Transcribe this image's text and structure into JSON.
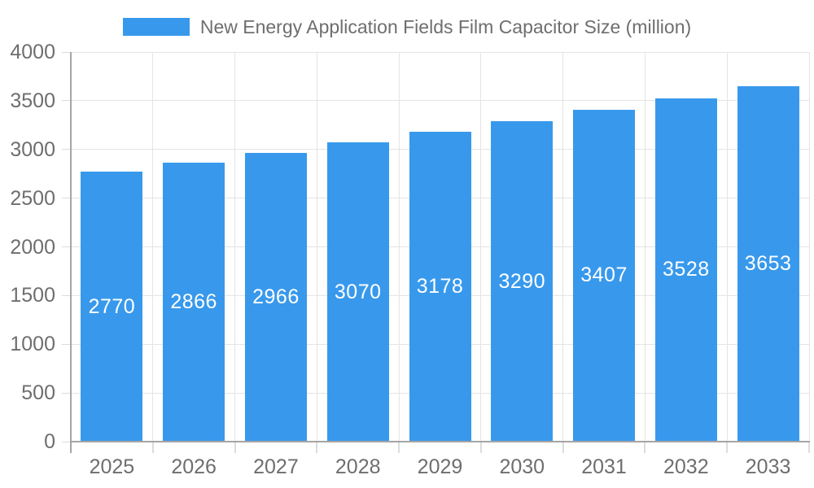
{
  "chart_data": {
    "type": "bar",
    "title": "",
    "legend": {
      "label": "New Energy Application Fields Film Capacitor Size (million)",
      "position": "top"
    },
    "categories": [
      "2025",
      "2026",
      "2027",
      "2028",
      "2029",
      "2030",
      "2031",
      "2032",
      "2033"
    ],
    "series": [
      {
        "name": "New Energy Application Fields Film Capacitor Size (million)",
        "values": [
          2770,
          2866,
          2966,
          3070,
          3178,
          3290,
          3407,
          3528,
          3653
        ]
      }
    ],
    "value_labels_shown": true,
    "xlabel": "",
    "ylabel": "",
    "ylim": [
      0,
      4000
    ],
    "yticks": [
      0,
      500,
      1000,
      1500,
      2000,
      2500,
      3000,
      3500,
      4000
    ],
    "grid": true,
    "colors": {
      "bar": "#3899EC",
      "gridline": "#E4E4E4",
      "tick": "#DCDCDC",
      "axis": "#A5A5A5",
      "axis_text": "#6E6E6E",
      "legend_text": "#6E6E6E",
      "value_label_text": "#FFFFFF",
      "background": "#FFFFFF"
    }
  }
}
